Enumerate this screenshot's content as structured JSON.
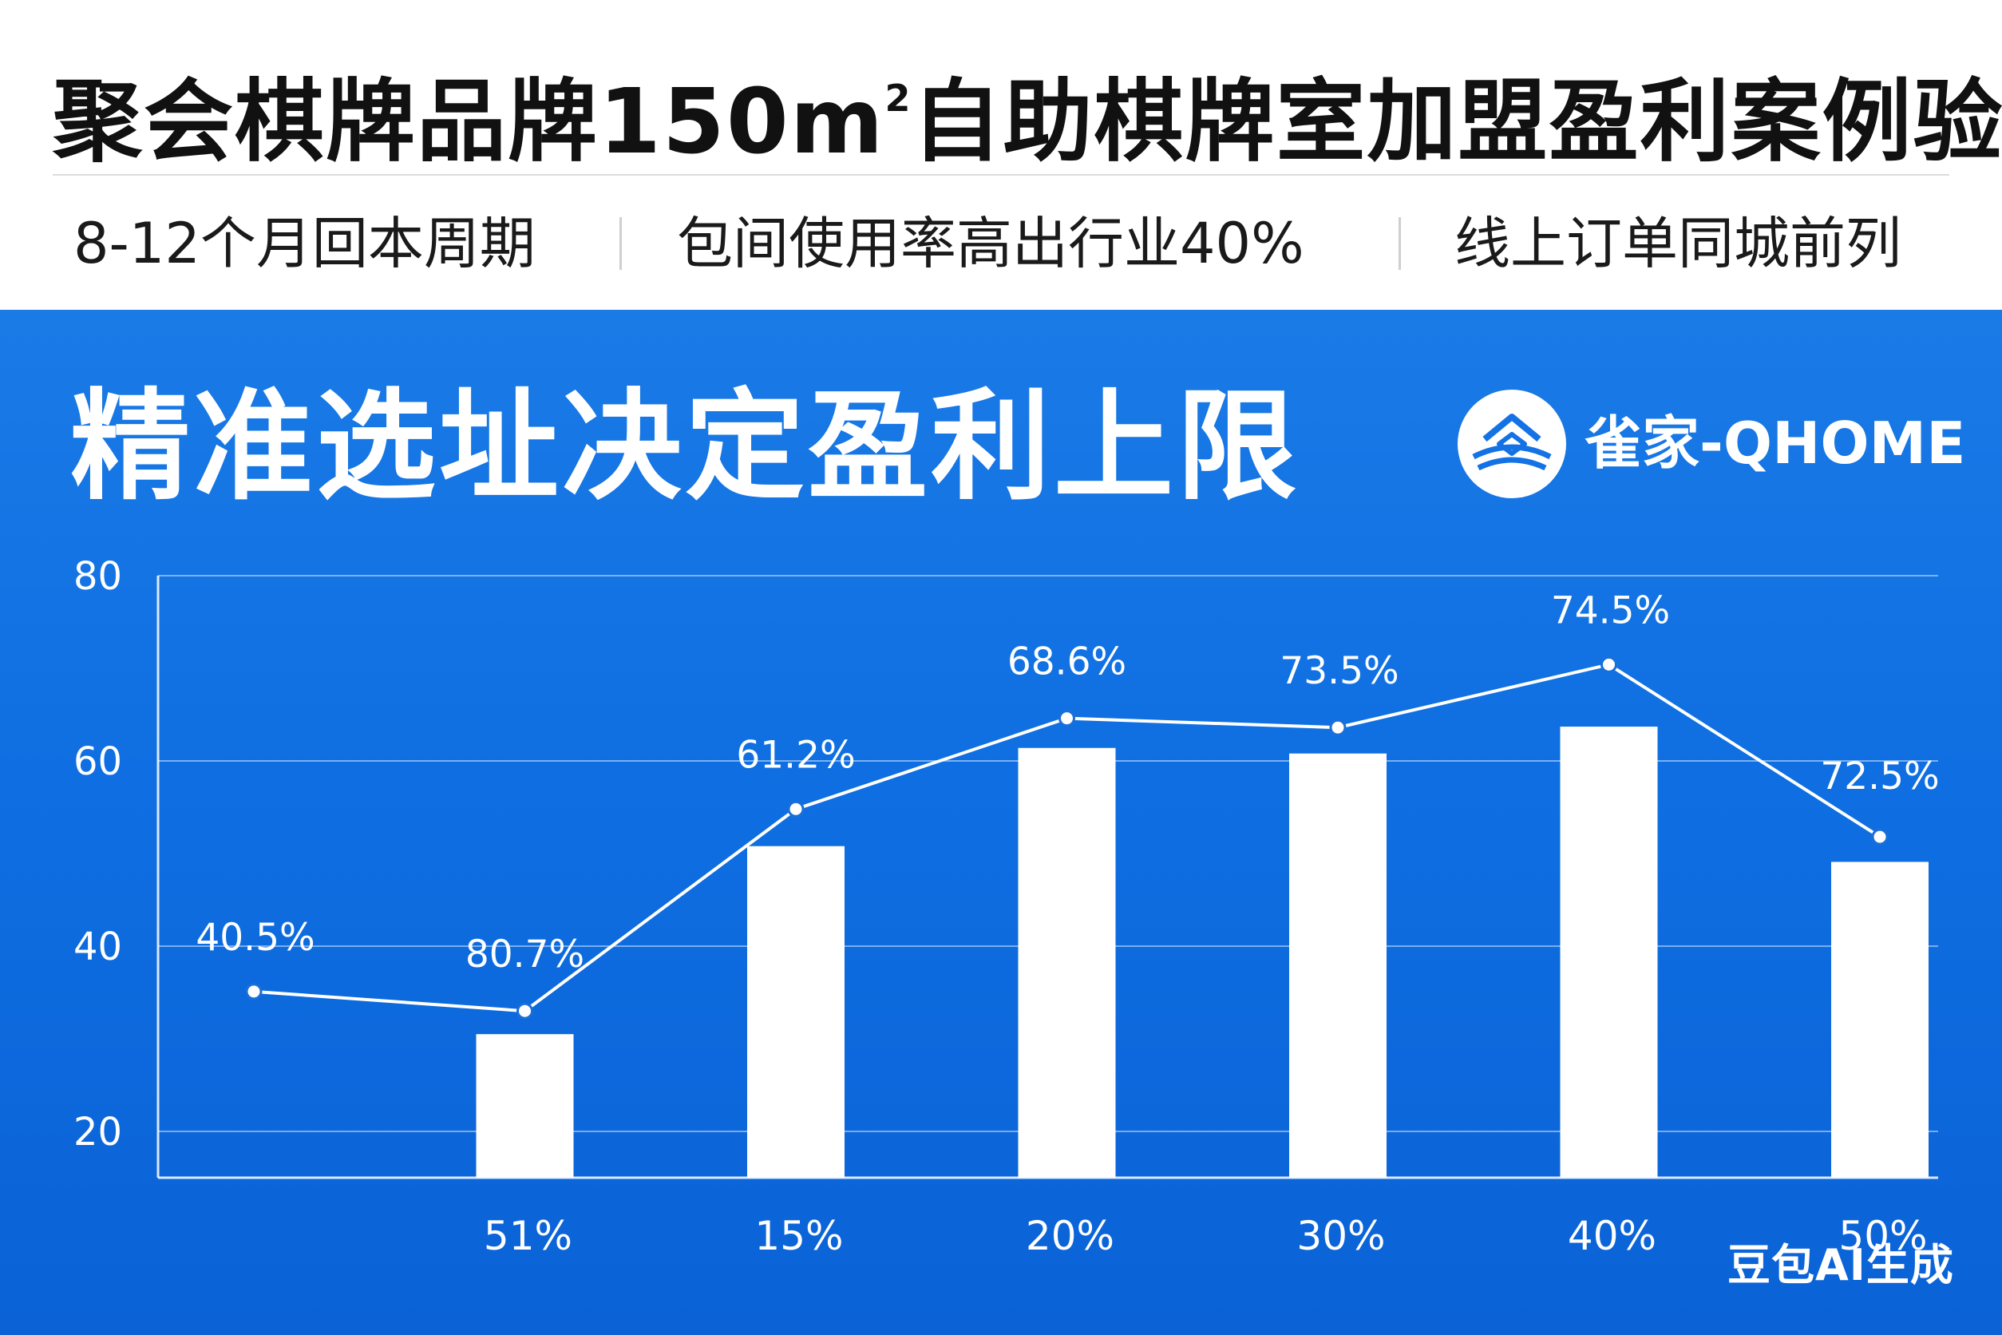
{
  "header": {
    "title_main": "聚会棋牌品牌150m",
    "title_sup": "2",
    "title_rest": "自助棋牌室加盟盈利案例验证",
    "highlights": [
      "8-12个月回本周期",
      "包间使用率高出行业40%",
      "线上订单同城前列"
    ]
  },
  "panel": {
    "title": "精准选址决定盈利上限",
    "brand": "雀家-QHOME",
    "watermark": "豆包AI生成"
  },
  "colors": {
    "panel_top": "#1a7ae6",
    "panel_bottom": "#0a62d6",
    "bar": "#ffffff",
    "line": "#ffffff"
  },
  "chart_data": {
    "type": "bar",
    "ylim": [
      15,
      80
    ],
    "yticks": [
      20,
      40,
      60,
      80
    ],
    "grid": true,
    "categories": [
      "",
      "51%",
      "15%",
      "20%",
      "30%",
      "40%",
      "50%"
    ],
    "bar_values": [
      null,
      30.5,
      50.8,
      61.4,
      60.8,
      63.7,
      49.1
    ],
    "line_values": [
      35.1,
      33,
      54.8,
      64.6,
      63.6,
      70.4,
      51.8
    ],
    "data_labels": [
      "40.5%",
      "80.7%",
      "61.2%",
      "68.6%",
      "73.5%",
      "74.5%",
      "72.5%"
    ]
  }
}
